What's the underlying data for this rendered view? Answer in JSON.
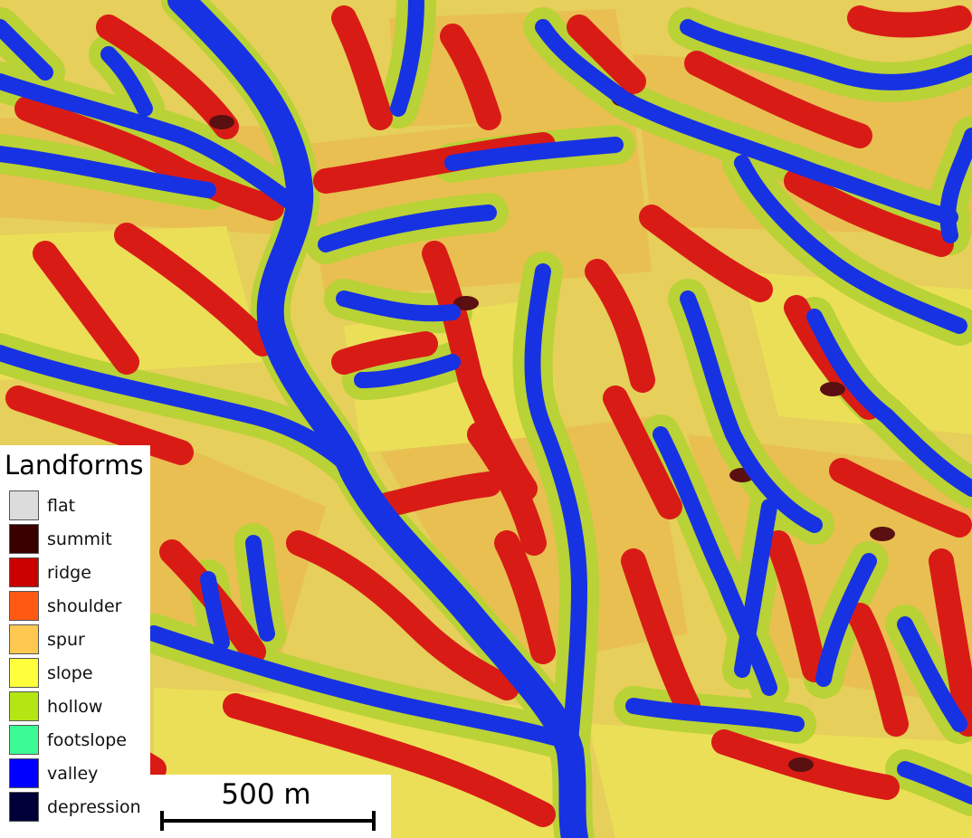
{
  "map": {
    "colors": {
      "background": "#e6cf5a",
      "slope": "#ecdf58",
      "spur": "#e9bf52",
      "hollow": "#b9d236",
      "ridge": "#d91b16",
      "valley": "#1732e3",
      "summit": "#5a1010",
      "shade": "#000000"
    }
  },
  "legend": {
    "title": "Landforms",
    "items": [
      {
        "label": "flat",
        "color": "#dcdcdc"
      },
      {
        "label": "summit",
        "color": "#3a0000"
      },
      {
        "label": "ridge",
        "color": "#c80000"
      },
      {
        "label": "shoulder",
        "color": "#ff5a14"
      },
      {
        "label": "spur",
        "color": "#ffc850"
      },
      {
        "label": "slope",
        "color": "#ffff3c"
      },
      {
        "label": "hollow",
        "color": "#b4e614"
      },
      {
        "label": "footslope",
        "color": "#3cfa96"
      },
      {
        "label": "valley",
        "color": "#0000ff"
      },
      {
        "label": "depression",
        "color": "#000038"
      }
    ]
  },
  "scalebar": {
    "label": "500 m"
  }
}
